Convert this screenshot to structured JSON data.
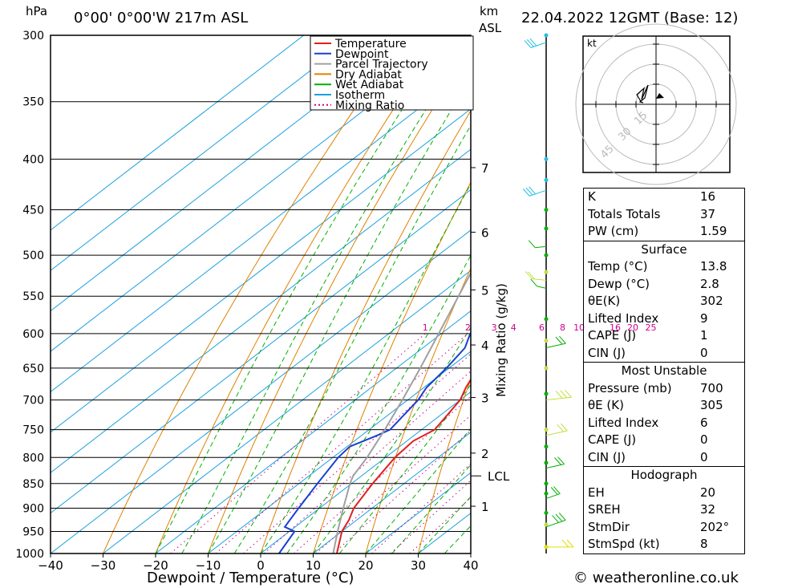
{
  "header": {
    "pressure_unit": "hPa",
    "location": "0°00' 0°00'W 217m ASL",
    "altitude_unit_line1": "km",
    "altitude_unit_line2": "ASL",
    "datetime": "22.04.2022 12GMT (Base: 12)"
  },
  "footer": {
    "credit": "© weatheronline.co.uk"
  },
  "chart_data": {
    "type": "line",
    "title": "",
    "xlabel": "Dewpoint / Temperature (°C)",
    "ylabel": "hPa",
    "xlim": [
      -40,
      40
    ],
    "ylim": [
      1000,
      300
    ],
    "y_scale": "log",
    "x_ticks": [
      -40,
      -30,
      -20,
      -10,
      0,
      10,
      20,
      30,
      40
    ],
    "y_ticks": [
      300,
      350,
      400,
      450,
      500,
      550,
      600,
      650,
      700,
      750,
      800,
      850,
      900,
      950,
      1000
    ],
    "legend_position": "top-right",
    "legend": [
      {
        "name": "Temperature",
        "color": "#e02020"
      },
      {
        "name": "Dewpoint",
        "color": "#1a3fd0"
      },
      {
        "name": "Parcel Trajectory",
        "color": "#a0a0a0"
      },
      {
        "name": "Dry Adiabat",
        "color": "#e08000"
      },
      {
        "name": "Wet Adiabat",
        "color": "#00b000"
      },
      {
        "name": "Isotherm",
        "color": "#1ba0e0"
      },
      {
        "name": "Mixing Ratio",
        "color": "#d0008a"
      }
    ],
    "series": [
      {
        "name": "Temperature",
        "color": "#e02020",
        "points": [
          [
            1000,
            14.5
          ],
          [
            950,
            10.0
          ],
          [
            925,
            8.5
          ],
          [
            900,
            6.5
          ],
          [
            850,
            4.0
          ],
          [
            800,
            1.8
          ],
          [
            770,
            1.2
          ],
          [
            750,
            2.5
          ],
          [
            700,
            0.0
          ],
          [
            680,
            -2.0
          ],
          [
            650,
            -4.5
          ],
          [
            600,
            -8.0
          ],
          [
            570,
            -10.5
          ],
          [
            550,
            -12.5
          ],
          [
            500,
            -17.5
          ],
          [
            450,
            -24.0
          ],
          [
            400,
            -31.5
          ],
          [
            350,
            -40.0
          ],
          [
            300,
            -49.0
          ]
        ]
      },
      {
        "name": "Dewpoint",
        "color": "#1a3fd0",
        "points": [
          [
            1000,
            3.5
          ],
          [
            950,
            1.0
          ],
          [
            940,
            -2.0
          ],
          [
            900,
            -4.0
          ],
          [
            850,
            -6.5
          ],
          [
            800,
            -9.0
          ],
          [
            780,
            -9.5
          ],
          [
            760,
            -7.0
          ],
          [
            750,
            -6.0
          ],
          [
            700,
            -8.0
          ],
          [
            680,
            -9.5
          ],
          [
            650,
            -10.5
          ],
          [
            620,
            -12.0
          ],
          [
            600,
            -14.5
          ],
          [
            575,
            -15.5
          ],
          [
            570,
            -18.0
          ],
          [
            560,
            -17.5
          ],
          [
            540,
            -23.0
          ],
          [
            500,
            -23.0
          ],
          [
            450,
            -32.0
          ],
          [
            400,
            -41.0
          ],
          [
            360,
            -49.0
          ],
          [
            300,
            -62.0
          ]
        ]
      },
      {
        "name": "Parcel Trajectory",
        "color": "#a0a0a0",
        "points": [
          [
            1000,
            13.8
          ],
          [
            950,
            9.2
          ],
          [
            900,
            4.5
          ],
          [
            850,
            -0.3
          ],
          [
            835,
            -1.6
          ],
          [
            800,
            -3.5
          ],
          [
            750,
            -7.0
          ],
          [
            700,
            -11.0
          ],
          [
            650,
            -15.5
          ],
          [
            600,
            -20.5
          ],
          [
            550,
            -26.0
          ],
          [
            500,
            -32.0
          ],
          [
            450,
            -39.0
          ],
          [
            400,
            -47.0
          ],
          [
            350,
            -56.0
          ],
          [
            300,
            -66.0
          ]
        ]
      }
    ],
    "mixing_ratio_labels": [
      "1",
      "2",
      "3",
      "4",
      "6",
      "8",
      "10",
      "16",
      "20",
      "25"
    ],
    "mixing_ratio_values": [
      1,
      2,
      3,
      4,
      6,
      8,
      10,
      16,
      20,
      25
    ],
    "mixing_ratio_axis_label": "Mixing Ratio (g/kg)",
    "altitude_ticks": [
      {
        "label": "7",
        "p": 408
      },
      {
        "label": "6",
        "p": 474
      },
      {
        "label": "5",
        "p": 542
      },
      {
        "label": "4",
        "p": 616
      },
      {
        "label": "3",
        "p": 696
      },
      {
        "label": "2",
        "p": 792
      },
      {
        "label": "1",
        "p": 896
      }
    ],
    "lcl": {
      "label": "LCL",
      "p": 835
    }
  },
  "hodograph": {
    "unit": "kt",
    "ring_labels": [
      "15",
      "30",
      "45"
    ]
  },
  "indices": {
    "general": [
      {
        "k": "K",
        "v": "16"
      },
      {
        "k": "Totals Totals",
        "v": "37"
      },
      {
        "k": "PW (cm)",
        "v": "1.59"
      }
    ],
    "surface_title": "Surface",
    "surface": [
      {
        "k": "Temp (°C)",
        "v": "13.8"
      },
      {
        "k": "Dewp (°C)",
        "v": "2.8"
      },
      {
        "k": "θE(K)",
        "v": "302"
      },
      {
        "k": "Lifted Index",
        "v": "9"
      },
      {
        "k": "CAPE (J)",
        "v": "1"
      },
      {
        "k": "CIN (J)",
        "v": "0"
      }
    ],
    "unstable_title": "Most Unstable",
    "unstable": [
      {
        "k": "Pressure (mb)",
        "v": "700"
      },
      {
        "k": "θE (K)",
        "v": "305"
      },
      {
        "k": "Lifted Index",
        "v": "6"
      },
      {
        "k": "CAPE (J)",
        "v": "0"
      },
      {
        "k": "CIN (J)",
        "v": "0"
      }
    ],
    "hodograph_title": "Hodograph",
    "hodo": [
      {
        "k": "EH",
        "v": "20"
      },
      {
        "k": "SREH",
        "v": "32"
      },
      {
        "k": "StmDir",
        "v": "202°"
      },
      {
        "k": "StmSpd (kt)",
        "v": "8"
      }
    ]
  }
}
